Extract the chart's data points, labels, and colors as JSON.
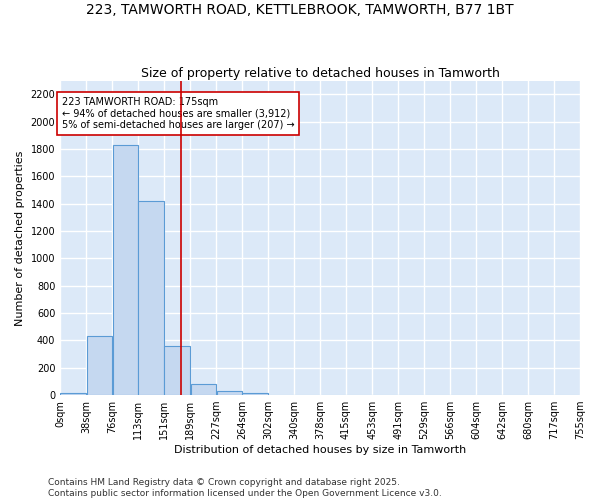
{
  "title": "223, TAMWORTH ROAD, KETTLEBROOK, TAMWORTH, B77 1BT",
  "subtitle": "Size of property relative to detached houses in Tamworth",
  "xlabel": "Distribution of detached houses by size in Tamworth",
  "ylabel": "Number of detached properties",
  "footer_line1": "Contains HM Land Registry data © Crown copyright and database right 2025.",
  "footer_line2": "Contains public sector information licensed under the Open Government Licence v3.0.",
  "bin_labels": [
    "0sqm",
    "38sqm",
    "76sqm",
    "113sqm",
    "151sqm",
    "189sqm",
    "227sqm",
    "264sqm",
    "302sqm",
    "340sqm",
    "378sqm",
    "415sqm",
    "453sqm",
    "491sqm",
    "529sqm",
    "566sqm",
    "604sqm",
    "642sqm",
    "680sqm",
    "717sqm",
    "755sqm"
  ],
  "bin_edges": [
    0,
    38,
    76,
    113,
    151,
    189,
    227,
    264,
    302,
    340,
    378,
    415,
    453,
    491,
    529,
    566,
    604,
    642,
    680,
    717,
    755
  ],
  "bar_heights": [
    15,
    430,
    1830,
    1420,
    360,
    80,
    30,
    15,
    0,
    0,
    0,
    0,
    0,
    0,
    0,
    0,
    0,
    0,
    0,
    0
  ],
  "bar_color": "#c5d8f0",
  "bar_edgecolor": "#5b9bd5",
  "property_size": 175,
  "vline_color": "#cc0000",
  "annotation_text": "223 TAMWORTH ROAD: 175sqm\n← 94% of detached houses are smaller (3,912)\n5% of semi-detached houses are larger (207) →",
  "annotation_box_color": "#cc0000",
  "ylim": [
    0,
    2300
  ],
  "yticks": [
    0,
    200,
    400,
    600,
    800,
    1000,
    1200,
    1400,
    1600,
    1800,
    2000,
    2200
  ],
  "background_color": "#dce9f8",
  "grid_color": "#ffffff",
  "title_fontsize": 10,
  "subtitle_fontsize": 9,
  "axis_label_fontsize": 8,
  "tick_fontsize": 7,
  "footer_fontsize": 6.5,
  "annotation_fontsize": 7
}
